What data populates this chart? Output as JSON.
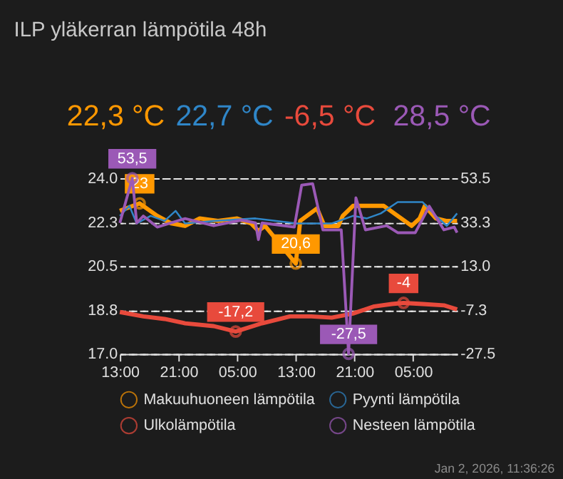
{
  "chart_data": {
    "type": "line",
    "title": "ILP yläkerran lämpötila 48h",
    "xlim": [
      "2025-12-31T13:00",
      "2026-01-02T11:00"
    ],
    "xticks": [
      {
        "value": "2025-12-31T13:00",
        "label": "13:00"
      },
      {
        "value": "2025-12-31T21:00",
        "label": "21:00"
      },
      {
        "value": "2026-01-01T05:00",
        "label": "05:00"
      },
      {
        "value": "2026-01-01T13:00",
        "label": "13:00"
      },
      {
        "value": "2026-01-01T21:00",
        "label": "21:00"
      },
      {
        "value": "2026-01-02T05:00",
        "label": "05:00"
      }
    ],
    "ylim": [
      17,
      24
    ],
    "yticks": [
      {
        "value": 17,
        "label": "17.0"
      },
      {
        "value": 18.75,
        "label": "18.8"
      },
      {
        "value": 20.5,
        "label": "20.5"
      },
      {
        "value": 22.25,
        "label": "22.3"
      },
      {
        "value": 24,
        "label": "24.0"
      }
    ],
    "y2lim": [
      -27.5,
      53.5
    ],
    "y2ticks": [
      {
        "value": -27.5,
        "label": "-27.5"
      },
      {
        "value": -7.25,
        "label": "-7.3"
      },
      {
        "value": 13,
        "label": "13.0"
      },
      {
        "value": 33.25,
        "label": "33.3"
      },
      {
        "value": 53.5,
        "label": "53.5"
      }
    ],
    "grid": "y",
    "legend": "bottom",
    "marker": "none",
    "line_style": "solid",
    "series": [
      {
        "name": "Makuuhuoneen lämpötila",
        "color": "#ff9800",
        "x": [
          "2025-12-31T13:00",
          "2025-12-31T15:42",
          "2025-12-31T18:06",
          "2025-12-31T20:00",
          "2025-12-31T21:54",
          "2025-12-31T23:54",
          "2026-01-01T02:24",
          "2026-01-01T05:00",
          "2026-01-01T06:54",
          "2026-01-01T07:54",
          "2026-01-01T08:48",
          "2026-01-01T13:00",
          "2026-01-01T13:36",
          "2026-01-01T15:54",
          "2026-01-01T16:54",
          "2026-01-01T18:48",
          "2026-01-01T19:24",
          "2026-01-01T20:48",
          "2026-01-01T22:42",
          "2026-01-02T01:00",
          "2026-01-02T02:54",
          "2026-01-02T04:48",
          "2026-01-02T05:54",
          "2026-01-02T06:36",
          "2026-01-02T08:06",
          "2026-01-02T09:30",
          "2026-01-02T11:00"
        ],
        "values": [
          22.7,
          23,
          22.5,
          22.2,
          22.1,
          22.4,
          22.3,
          22.4,
          22.2,
          21.9,
          22.1,
          20.6,
          22.3,
          22.8,
          22.1,
          22.1,
          22.5,
          22.9,
          22.9,
          22.9,
          22.5,
          22.1,
          22.4,
          22.9,
          22.4,
          22.3,
          22.3
        ],
        "value_labels": [
          null,
          "23",
          null,
          null,
          null,
          null,
          null,
          null,
          null,
          null,
          null,
          "20,6",
          null,
          null,
          null,
          null,
          null,
          null,
          null,
          null,
          null,
          null,
          null,
          null,
          null,
          null,
          null
        ]
      },
      {
        "name": "Pyynti lämpötila",
        "color": "#2f86c8",
        "x": [
          "2025-12-31T13:00",
          "2025-12-31T14:18",
          "2025-12-31T15:18",
          "2025-12-31T17:12",
          "2025-12-31T19:06",
          "2025-12-31T20:36",
          "2025-12-31T21:54",
          "2026-01-01T01:48",
          "2026-01-01T07:30",
          "2026-01-01T13:12",
          "2026-01-01T15:06",
          "2026-01-01T17:54",
          "2026-01-01T20:48",
          "2026-01-01T22:42",
          "2026-01-02T00:36",
          "2026-01-02T02:54",
          "2026-01-02T06:18",
          "2026-01-02T08:06",
          "2026-01-02T09:36",
          "2026-01-02T11:00"
        ],
        "values": [
          22.5,
          22.9,
          22.2,
          22.5,
          22.3,
          22.7,
          22.2,
          22.3,
          22.4,
          22.2,
          22.2,
          22.2,
          22.5,
          22.4,
          22.6,
          23.05,
          23.05,
          22.5,
          22.1,
          22.6
        ]
      },
      {
        "name": "Ulkolämpötila",
        "color": "#e84a3c",
        "axis": "y2",
        "x": [
          "2025-12-31T13:00",
          "2025-12-31T16:12",
          "2025-12-31T19:06",
          "2025-12-31T21:54",
          "2026-01-01T01:48",
          "2026-01-01T04:48",
          "2026-01-01T08:24",
          "2026-01-01T12:12",
          "2026-01-01T15:06",
          "2026-01-01T17:54",
          "2026-01-01T20:48",
          "2026-01-01T23:42",
          "2026-01-02T02:06",
          "2026-01-02T03:42",
          "2026-01-02T06:18",
          "2026-01-02T09:12",
          "2026-01-02T11:00"
        ],
        "values": [
          -8.2,
          -10.2,
          -11.4,
          -13.4,
          -14.7,
          -17.2,
          -13.4,
          -10.2,
          -10.2,
          -10.8,
          -8.9,
          -5.6,
          -4.5,
          -4,
          -4.5,
          -5.1,
          -7
        ],
        "value_labels": [
          null,
          null,
          null,
          null,
          null,
          "-17,2",
          null,
          null,
          null,
          null,
          null,
          null,
          null,
          "-4",
          null,
          null,
          null
        ]
      },
      {
        "name": "Nesteen lämpötila",
        "color": "#9b59b6",
        "axis": "y2",
        "x": [
          "2025-12-31T13:00",
          "2025-12-31T14:42",
          "2025-12-31T15:18",
          "2025-12-31T16:12",
          "2025-12-31T18:06",
          "2025-12-31T21:54",
          "2026-01-01T01:48",
          "2026-01-01T05:36",
          "2026-01-01T07:30",
          "2026-01-01T07:54",
          "2026-01-01T08:24",
          "2026-01-01T12:48",
          "2026-01-01T13:48",
          "2026-01-01T15:18",
          "2026-01-01T16:42",
          "2026-01-01T19:12",
          "2026-01-01T20:12",
          "2026-01-01T21:12",
          "2026-01-01T22:30",
          "2026-01-02T01:24",
          "2026-01-02T02:54",
          "2026-01-02T05:18",
          "2026-01-02T07:12",
          "2026-01-02T09:12",
          "2026-01-02T10:36",
          "2026-01-02T11:00"
        ],
        "values": [
          32.9,
          53.5,
          32.9,
          36.1,
          31,
          34.9,
          31.6,
          34.2,
          32.9,
          25.2,
          32.9,
          31,
          50.3,
          51,
          29.7,
          29.7,
          -27.5,
          44.5,
          29.7,
          31.6,
          28.4,
          28.4,
          40.6,
          29.7,
          31,
          28.4
        ],
        "value_labels": [
          null,
          "53,5",
          null,
          null,
          null,
          null,
          null,
          null,
          null,
          null,
          null,
          null,
          null,
          null,
          null,
          null,
          "-27,5",
          null,
          null,
          null,
          null,
          null,
          null,
          null,
          null,
          null
        ]
      }
    ],
    "annotations": [
      "22,3 °C",
      "22,7 °C",
      "-6,5 °C",
      "28,5 °C",
      "Jan 2, 2026, 11:36:26"
    ]
  }
}
